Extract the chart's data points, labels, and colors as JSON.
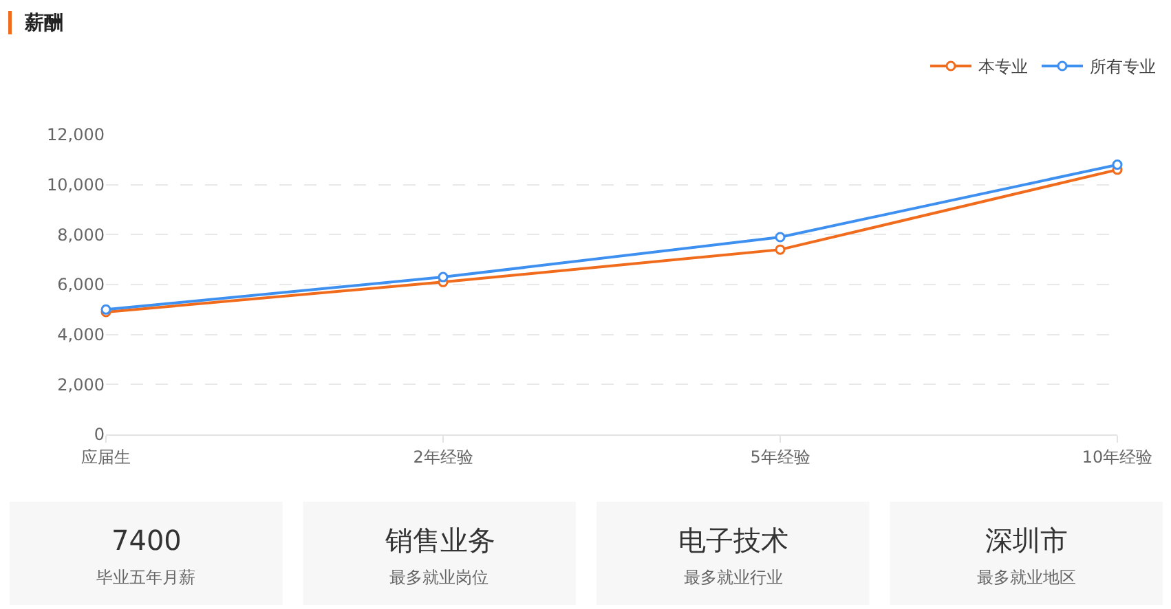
{
  "chart_data": [
    {
      "type": "line",
      "title": "薪酬",
      "categories": [
        "应届生",
        "2年经验",
        "5年经验",
        "10年经验"
      ],
      "series": [
        {
          "name": "本专业",
          "color": "#f06c1c",
          "values": [
            4900,
            6100,
            7400,
            10600
          ]
        },
        {
          "name": "所有专业",
          "color": "#3d8ff0",
          "values": [
            5000,
            6300,
            7900,
            10800
          ]
        }
      ],
      "ylim": [
        0,
        12000
      ],
      "yticks": [
        0,
        {
          "value": 2000,
          "label": "2,000"
        },
        {
          "value": 4000,
          "label": "4,000"
        },
        {
          "value": 6000,
          "label": "6,000"
        },
        {
          "value": 8000,
          "label": "8,000"
        },
        {
          "value": 10000,
          "label": "10,000"
        },
        {
          "value": 12000,
          "label": "12,000"
        }
      ],
      "grid": "y",
      "legend": "top right",
      "marker": "circle",
      "line_style": "solid"
    },
    {
      "type": "other",
      "annotations": [
        "7400",
        "毕业五年月薪",
        "销售业务",
        "最多就业岗位",
        "电子技术",
        "最多就业行业",
        "深圳市",
        "最多就业地区"
      ]
    }
  ]
}
